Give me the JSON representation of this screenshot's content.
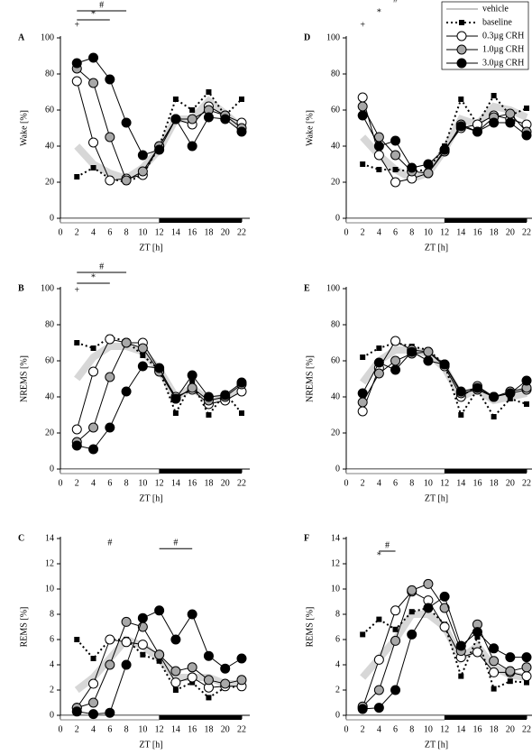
{
  "legend": [
    {
      "name": "vehicle",
      "color": "#b0b0b0",
      "style": "band"
    },
    {
      "name": "baseline",
      "color": "#000000",
      "style": "dotted-square"
    },
    {
      "name": "0.3µg CRH",
      "color": "#ffffff",
      "style": "circle"
    },
    {
      "name": "1.0µg CRH",
      "color": "#a8a8a8",
      "style": "circle"
    },
    {
      "name": "3.0µg CRH",
      "color": "#000000",
      "style": "circle"
    }
  ],
  "chart_data": [
    {
      "type": "line",
      "label": "A",
      "ylabel": "Wake [%]",
      "xlabel": "ZT [h]",
      "x": [
        2,
        4,
        6,
        8,
        10,
        12,
        14,
        16,
        18,
        20,
        22
      ],
      "xlim": [
        0,
        22
      ],
      "xticks": [
        0,
        2,
        4,
        6,
        8,
        10,
        12,
        14,
        16,
        18,
        20,
        22
      ],
      "ylim": [
        0,
        100
      ],
      "yticks": [
        0,
        20,
        40,
        60,
        80,
        100
      ],
      "light_phase": [
        0,
        12
      ],
      "dark_phase": [
        12,
        22
      ],
      "series": [
        {
          "values": [
            40,
            30,
            25,
            22,
            28,
            38,
            55,
            55,
            65,
            58,
            50
          ]
        },
        {
          "values": [
            23,
            28,
            22,
            20,
            24,
            40,
            66,
            60,
            70,
            57,
            66
          ]
        },
        {
          "values": [
            76,
            42,
            21,
            22,
            24,
            40,
            55,
            52,
            62,
            57,
            53
          ]
        },
        {
          "values": [
            83,
            75,
            45,
            21,
            26,
            40,
            55,
            55,
            60,
            57,
            50
          ]
        },
        {
          "values": [
            86,
            89,
            77,
            53,
            35,
            38,
            55,
            40,
            56,
            55,
            48
          ]
        }
      ],
      "annotations": [
        {
          "text": "#",
          "x": [
            2,
            8
          ],
          "y": 115
        },
        {
          "text": "*",
          "x": [
            2,
            6
          ],
          "y": 110
        },
        {
          "text": "+",
          "x": [
            2,
            2
          ],
          "y": 104
        }
      ]
    },
    {
      "type": "line",
      "label": "B",
      "ylabel": "NREMS [%]",
      "xlabel": "ZT [h]",
      "x": [
        2,
        4,
        6,
        8,
        10,
        12,
        14,
        16,
        18,
        20,
        22
      ],
      "xlim": [
        0,
        22
      ],
      "xticks": [
        0,
        2,
        4,
        6,
        8,
        10,
        12,
        14,
        16,
        18,
        20,
        22
      ],
      "ylim": [
        0,
        100
      ],
      "yticks": [
        0,
        20,
        40,
        60,
        80,
        100
      ],
      "light_phase": [
        0,
        12
      ],
      "dark_phase": [
        12,
        22
      ],
      "series": [
        {
          "values": [
            50,
            62,
            68,
            68,
            65,
            55,
            40,
            45,
            38,
            40,
            45
          ]
        },
        {
          "values": [
            70,
            67,
            73,
            71,
            63,
            55,
            31,
            48,
            30,
            42,
            31
          ]
        },
        {
          "values": [
            22,
            54,
            72,
            70,
            70,
            55,
            40,
            44,
            36,
            38,
            43
          ]
        },
        {
          "values": [
            15,
            23,
            51,
            70,
            67,
            54,
            39,
            45,
            38,
            40,
            47
          ]
        },
        {
          "values": [
            13,
            11,
            23,
            43,
            57,
            56,
            39,
            52,
            40,
            41,
            48
          ]
        }
      ],
      "annotations": [
        {
          "text": "#",
          "x": [
            2,
            8
          ],
          "y": 109
        },
        {
          "text": "*",
          "x": [
            2,
            6
          ],
          "y": 103
        },
        {
          "text": "+",
          "x": [
            2,
            2
          ],
          "y": 96
        }
      ]
    },
    {
      "type": "line",
      "label": "C",
      "ylabel": "REMS [%]",
      "xlabel": "ZT [h]",
      "x": [
        2,
        4,
        6,
        8,
        10,
        12,
        14,
        16,
        18,
        20,
        22
      ],
      "xlim": [
        0,
        22
      ],
      "xticks": [
        0,
        2,
        4,
        6,
        8,
        10,
        12,
        14,
        16,
        18,
        20,
        22
      ],
      "ylim": [
        0,
        14
      ],
      "yticks": [
        0,
        2,
        4,
        6,
        8,
        10,
        12,
        14
      ],
      "light_phase": [
        0,
        12
      ],
      "dark_phase": [
        12,
        22
      ],
      "series": [
        {
          "values": [
            2,
            3,
            4.5,
            6,
            5.5,
            4.5,
            3,
            3,
            3,
            2.5,
            2.5
          ]
        },
        {
          "values": [
            6,
            4.5,
            6,
            6,
            4.8,
            4.3,
            2,
            2.6,
            1.4,
            2.2,
            2.3
          ]
        },
        {
          "values": [
            0.6,
            2.5,
            6,
            5.8,
            5.6,
            4.8,
            2.6,
            3,
            2.2,
            2.3,
            2.3
          ]
        },
        {
          "values": [
            0.6,
            1,
            4,
            7.4,
            7,
            4.8,
            3.5,
            3.8,
            2.8,
            2.5,
            2.8
          ]
        },
        {
          "values": [
            0.3,
            0.1,
            0.2,
            4,
            7.7,
            8.3,
            6,
            8,
            4.7,
            3.7,
            4.5
          ]
        }
      ],
      "annotations": [
        {
          "text": "#",
          "x": [
            6,
            6
          ],
          "y": 13.2
        },
        {
          "text": "#",
          "x": [
            12,
            16
          ],
          "y": 13.2
        }
      ]
    },
    {
      "type": "line",
      "label": "D",
      "ylabel": "Wake [%]",
      "xlabel": "ZT [h]",
      "legend": "upper right",
      "x": [
        2,
        4,
        6,
        8,
        10,
        12,
        14,
        16,
        18,
        20,
        22
      ],
      "xlim": [
        0,
        22
      ],
      "xticks": [
        0,
        2,
        4,
        6,
        8,
        10,
        12,
        14,
        16,
        18,
        20,
        22
      ],
      "ylim": [
        0,
        100
      ],
      "yticks": [
        0,
        20,
        40,
        60,
        80,
        100
      ],
      "light_phase": [
        0,
        12
      ],
      "dark_phase": [
        12,
        22
      ],
      "series": [
        {
          "values": [
            45,
            35,
            27,
            22,
            25,
            38,
            55,
            52,
            62,
            60,
            56
          ]
        },
        {
          "values": [
            30,
            27,
            27,
            26,
            27,
            40,
            66,
            52,
            68,
            57,
            61
          ]
        },
        {
          "values": [
            67,
            35,
            20,
            22,
            25,
            38,
            50,
            52,
            57,
            55,
            52
          ]
        },
        {
          "values": [
            62,
            45,
            35,
            26,
            25,
            37,
            52,
            48,
            56,
            58,
            48
          ]
        },
        {
          "values": [
            57,
            40,
            43,
            28,
            30,
            38,
            51,
            48,
            53,
            53,
            46
          ]
        }
      ],
      "annotations": [
        {
          "text": "#",
          "x": [
            6,
            6
          ],
          "y": 118
        },
        {
          "text": "*",
          "x": [
            4,
            4
          ],
          "y": 111
        },
        {
          "text": "+",
          "x": [
            2,
            2
          ],
          "y": 104
        }
      ]
    },
    {
      "type": "line",
      "label": "E",
      "ylabel": "NREMS [%]",
      "xlabel": "ZT [h]",
      "x": [
        2,
        4,
        6,
        8,
        10,
        12,
        14,
        16,
        18,
        20,
        22
      ],
      "xlim": [
        0,
        22
      ],
      "xticks": [
        0,
        2,
        4,
        6,
        8,
        10,
        12,
        14,
        16,
        18,
        20,
        22
      ],
      "ylim": [
        0,
        100
      ],
      "yticks": [
        0,
        20,
        40,
        60,
        80,
        100
      ],
      "light_phase": [
        0,
        12
      ],
      "dark_phase": [
        12,
        22
      ],
      "series": [
        {
          "values": [
            48,
            60,
            66,
            66,
            64,
            56,
            40,
            44,
            38,
            40,
            42
          ]
        },
        {
          "values": [
            62,
            67,
            70,
            68,
            66,
            58,
            30,
            44,
            29,
            39,
            36
          ]
        },
        {
          "values": [
            32,
            56,
            71,
            66,
            65,
            57,
            40,
            46,
            40,
            42,
            44
          ]
        },
        {
          "values": [
            37,
            53,
            60,
            64,
            65,
            58,
            42,
            44,
            40,
            43,
            45
          ]
        },
        {
          "values": [
            42,
            59,
            55,
            65,
            60,
            58,
            43,
            45,
            40,
            42,
            49
          ]
        }
      ],
      "annotations": []
    },
    {
      "type": "line",
      "label": "F",
      "ylabel": "REMS [%]",
      "xlabel": "ZT [h]",
      "x": [
        2,
        4,
        6,
        8,
        10,
        12,
        14,
        16,
        18,
        20,
        22
      ],
      "xlim": [
        0,
        22
      ],
      "xticks": [
        0,
        2,
        4,
        6,
        8,
        10,
        12,
        14,
        16,
        18,
        20,
        22
      ],
      "ylim": [
        0,
        14
      ],
      "yticks": [
        0,
        2,
        4,
        6,
        8,
        10,
        12,
        14
      ],
      "light_phase": [
        0,
        12
      ],
      "dark_phase": [
        12,
        22
      ],
      "series": [
        {
          "values": [
            3,
            4.5,
            6,
            8,
            8,
            7,
            4.5,
            5.5,
            3.8,
            3.2,
            3
          ]
        },
        {
          "values": [
            6.4,
            7.6,
            6.8,
            8.2,
            8.5,
            7.2,
            3.1,
            6.2,
            2.1,
            2.7,
            2.6
          ]
        },
        {
          "values": [
            0.6,
            4.4,
            8.3,
            9.8,
            9.1,
            7,
            4.6,
            5,
            3.4,
            3.4,
            3.1
          ]
        },
        {
          "values": [
            0.7,
            2,
            5.9,
            9.9,
            10.4,
            8.5,
            5.1,
            7.2,
            4.3,
            3.5,
            3.8
          ]
        },
        {
          "values": [
            0.5,
            0.6,
            2,
            6.4,
            8.5,
            9.4,
            5.5,
            6.6,
            5.3,
            4.6,
            4.6
          ]
        }
      ],
      "annotations": [
        {
          "text": "#",
          "x": [
            4,
            6
          ],
          "y": 13
        },
        {
          "text": "*",
          "x": [
            4,
            4
          ],
          "y": 12.2
        }
      ]
    }
  ]
}
